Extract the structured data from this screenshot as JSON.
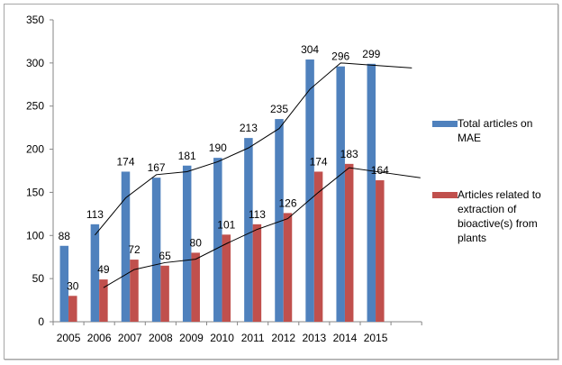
{
  "chart_data": {
    "type": "bar",
    "title": "",
    "xlabel": "",
    "ylabel": "",
    "categories": [
      "2005",
      "2006",
      "2007",
      "2008",
      "2009",
      "2010",
      "2011",
      "2012",
      "2013",
      "2014",
      "2015"
    ],
    "series": [
      {
        "name": "Total articles on MAE",
        "color": "#4f81bd",
        "values": [
          88,
          113,
          174,
          167,
          181,
          190,
          213,
          235,
          304,
          296,
          299
        ]
      },
      {
        "name": "Articles related to extraction of bioactive(s) from plants",
        "color": "#c0504d",
        "values": [
          30,
          49,
          72,
          65,
          80,
          101,
          113,
          126,
          174,
          183,
          164
        ]
      }
    ],
    "ylim": [
      0,
      350
    ],
    "yticks": [
      0,
      50,
      100,
      150,
      200,
      250,
      300,
      350
    ],
    "grid": false,
    "legend_position": "right",
    "trendline_color": "#000000",
    "data_labels": true
  },
  "legend": {
    "items": [
      {
        "label": "Total articles on MAE",
        "color": "#4f81bd"
      },
      {
        "label": "Articles related to extraction of bioactive(s) from plants",
        "color": "#c0504d"
      }
    ]
  }
}
